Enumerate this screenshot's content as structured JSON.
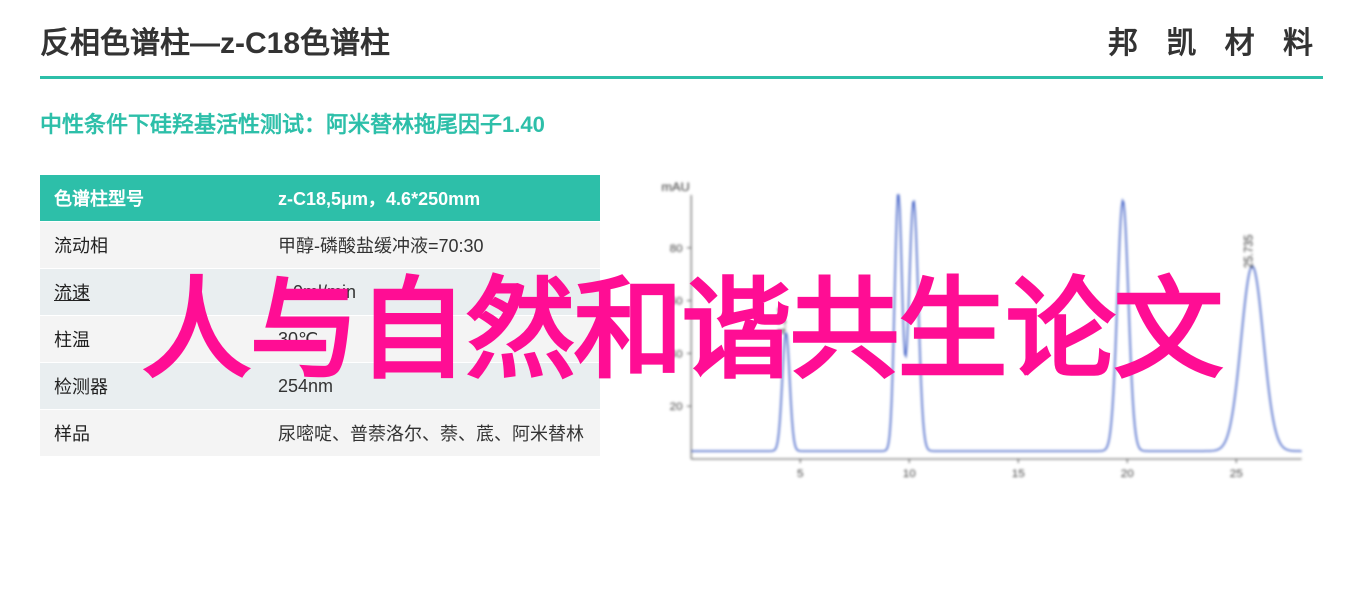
{
  "header": {
    "title": "反相色谱柱—z-C18色谱柱",
    "brand": "邦 凯 材 料"
  },
  "subtitle": "中性条件下硅羟基活性测试：阿米替林拖尾因子1.40",
  "table": {
    "headers": [
      "色谱柱型号",
      "z-C18,5μm，4.6*250mm"
    ],
    "rows": [
      {
        "label": "流动相",
        "value": "甲醇-磷酸盐缓冲液=70:30",
        "underline": false
      },
      {
        "label": "流速",
        "value": "1.0ml/min",
        "underline": true
      },
      {
        "label": "柱温",
        "value": "30℃",
        "underline": false
      },
      {
        "label": "检测器",
        "value": "254nm",
        "underline": false
      },
      {
        "label": "样品",
        "value": "尿嘧啶、普萘洛尔、萘、菧、阿米替林",
        "underline": false
      }
    ],
    "header_bg": "#2dbfa9",
    "header_color": "#ffffff",
    "row_bg_odd": "#f4f4f4",
    "row_bg_even": "#e9eef0"
  },
  "chart": {
    "type": "chromatogram",
    "y_unit": "mAU",
    "x_ticks": [
      5,
      10,
      15,
      20,
      25
    ],
    "y_ticks": [
      20,
      40,
      60,
      80
    ],
    "ylim": [
      0,
      100
    ],
    "xlim": [
      0,
      28
    ],
    "baseline_y": 3,
    "peaks": [
      {
        "rt": 4.346,
        "height": 45,
        "width": 0.4,
        "label": "4.346"
      },
      {
        "rt": 9.5,
        "height": 98,
        "width": 0.4,
        "label": ""
      },
      {
        "rt": 10.2,
        "height": 95,
        "width": 0.5,
        "label": ""
      },
      {
        "rt": 19.8,
        "height": 95,
        "width": 0.6,
        "label": ""
      },
      {
        "rt": 25.735,
        "height": 70,
        "width": 1.2,
        "label": "25.735"
      }
    ],
    "axis_color": "#5a5a5a",
    "trace_color": "#4a68c9",
    "background_color": "#ffffff",
    "label_fontsize": 11
  },
  "watermark": "人与自然和谐共生论文",
  "colors": {
    "accent": "#2dbfa9",
    "watermark": "#ff0d94",
    "text": "#333333"
  }
}
